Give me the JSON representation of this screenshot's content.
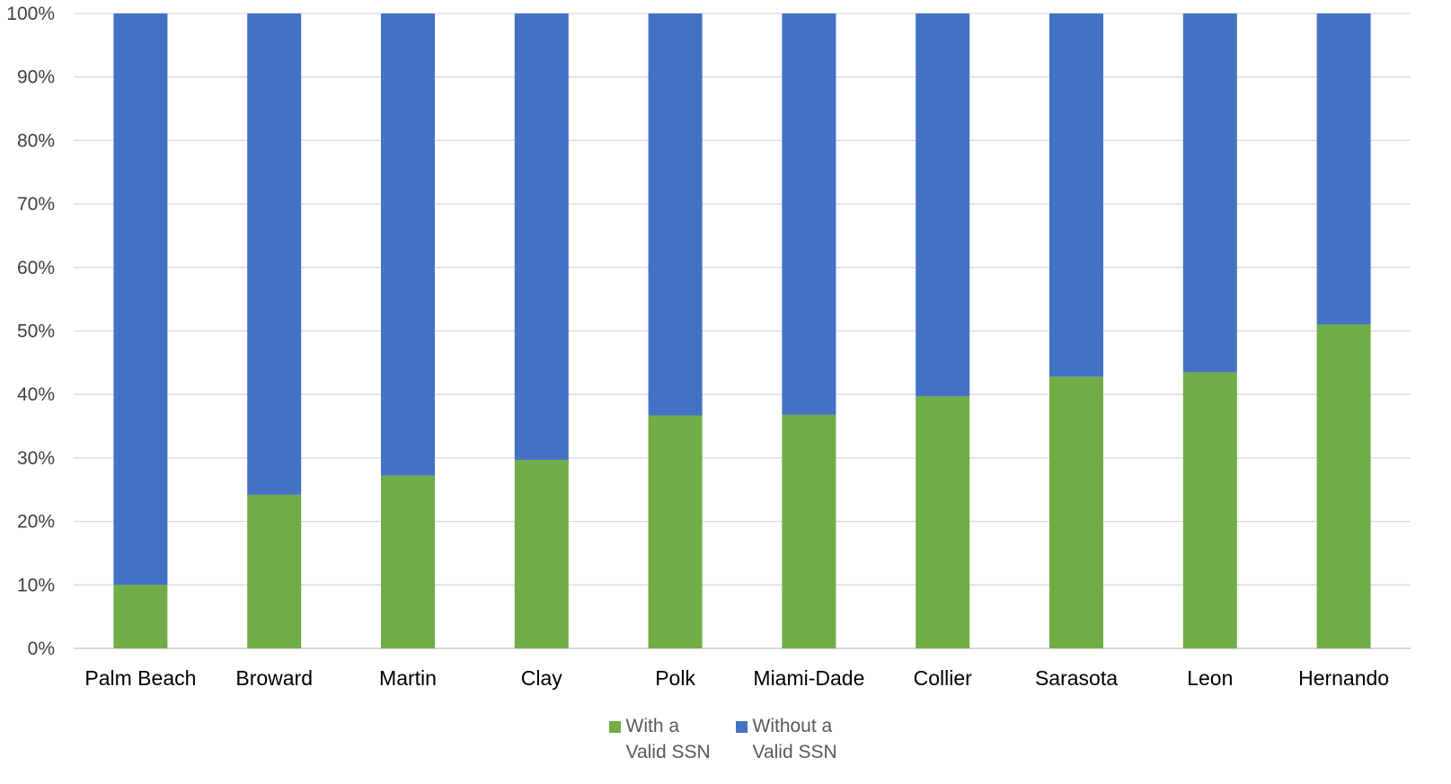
{
  "chart_data": {
    "type": "bar",
    "stacked": true,
    "percent": true,
    "categories": [
      "Palm Beach",
      "Broward",
      "Martin",
      "Clay",
      "Polk",
      "Miami-Dade",
      "Collier",
      "Sarasota",
      "Leon",
      "Hernando"
    ],
    "series": [
      {
        "name": "With a Valid SSN",
        "color": "#70AD47",
        "values": [
          10,
          24.2,
          27.2,
          29.7,
          36.7,
          36.8,
          39.7,
          42.8,
          43.5,
          51
        ]
      },
      {
        "name": "Without a Valid SSN",
        "color": "#4472C4",
        "values": [
          90,
          75.8,
          72.8,
          70.3,
          63.3,
          63.2,
          60.3,
          57.2,
          56.5,
          49
        ]
      }
    ],
    "y_ticks": [
      "0%",
      "10%",
      "20%",
      "30%",
      "40%",
      "50%",
      "60%",
      "70%",
      "80%",
      "90%",
      "100%"
    ],
    "ylim": [
      0,
      100
    ],
    "grid": true,
    "legend_position": "bottom",
    "title": "",
    "xlabel": "",
    "ylabel": ""
  }
}
